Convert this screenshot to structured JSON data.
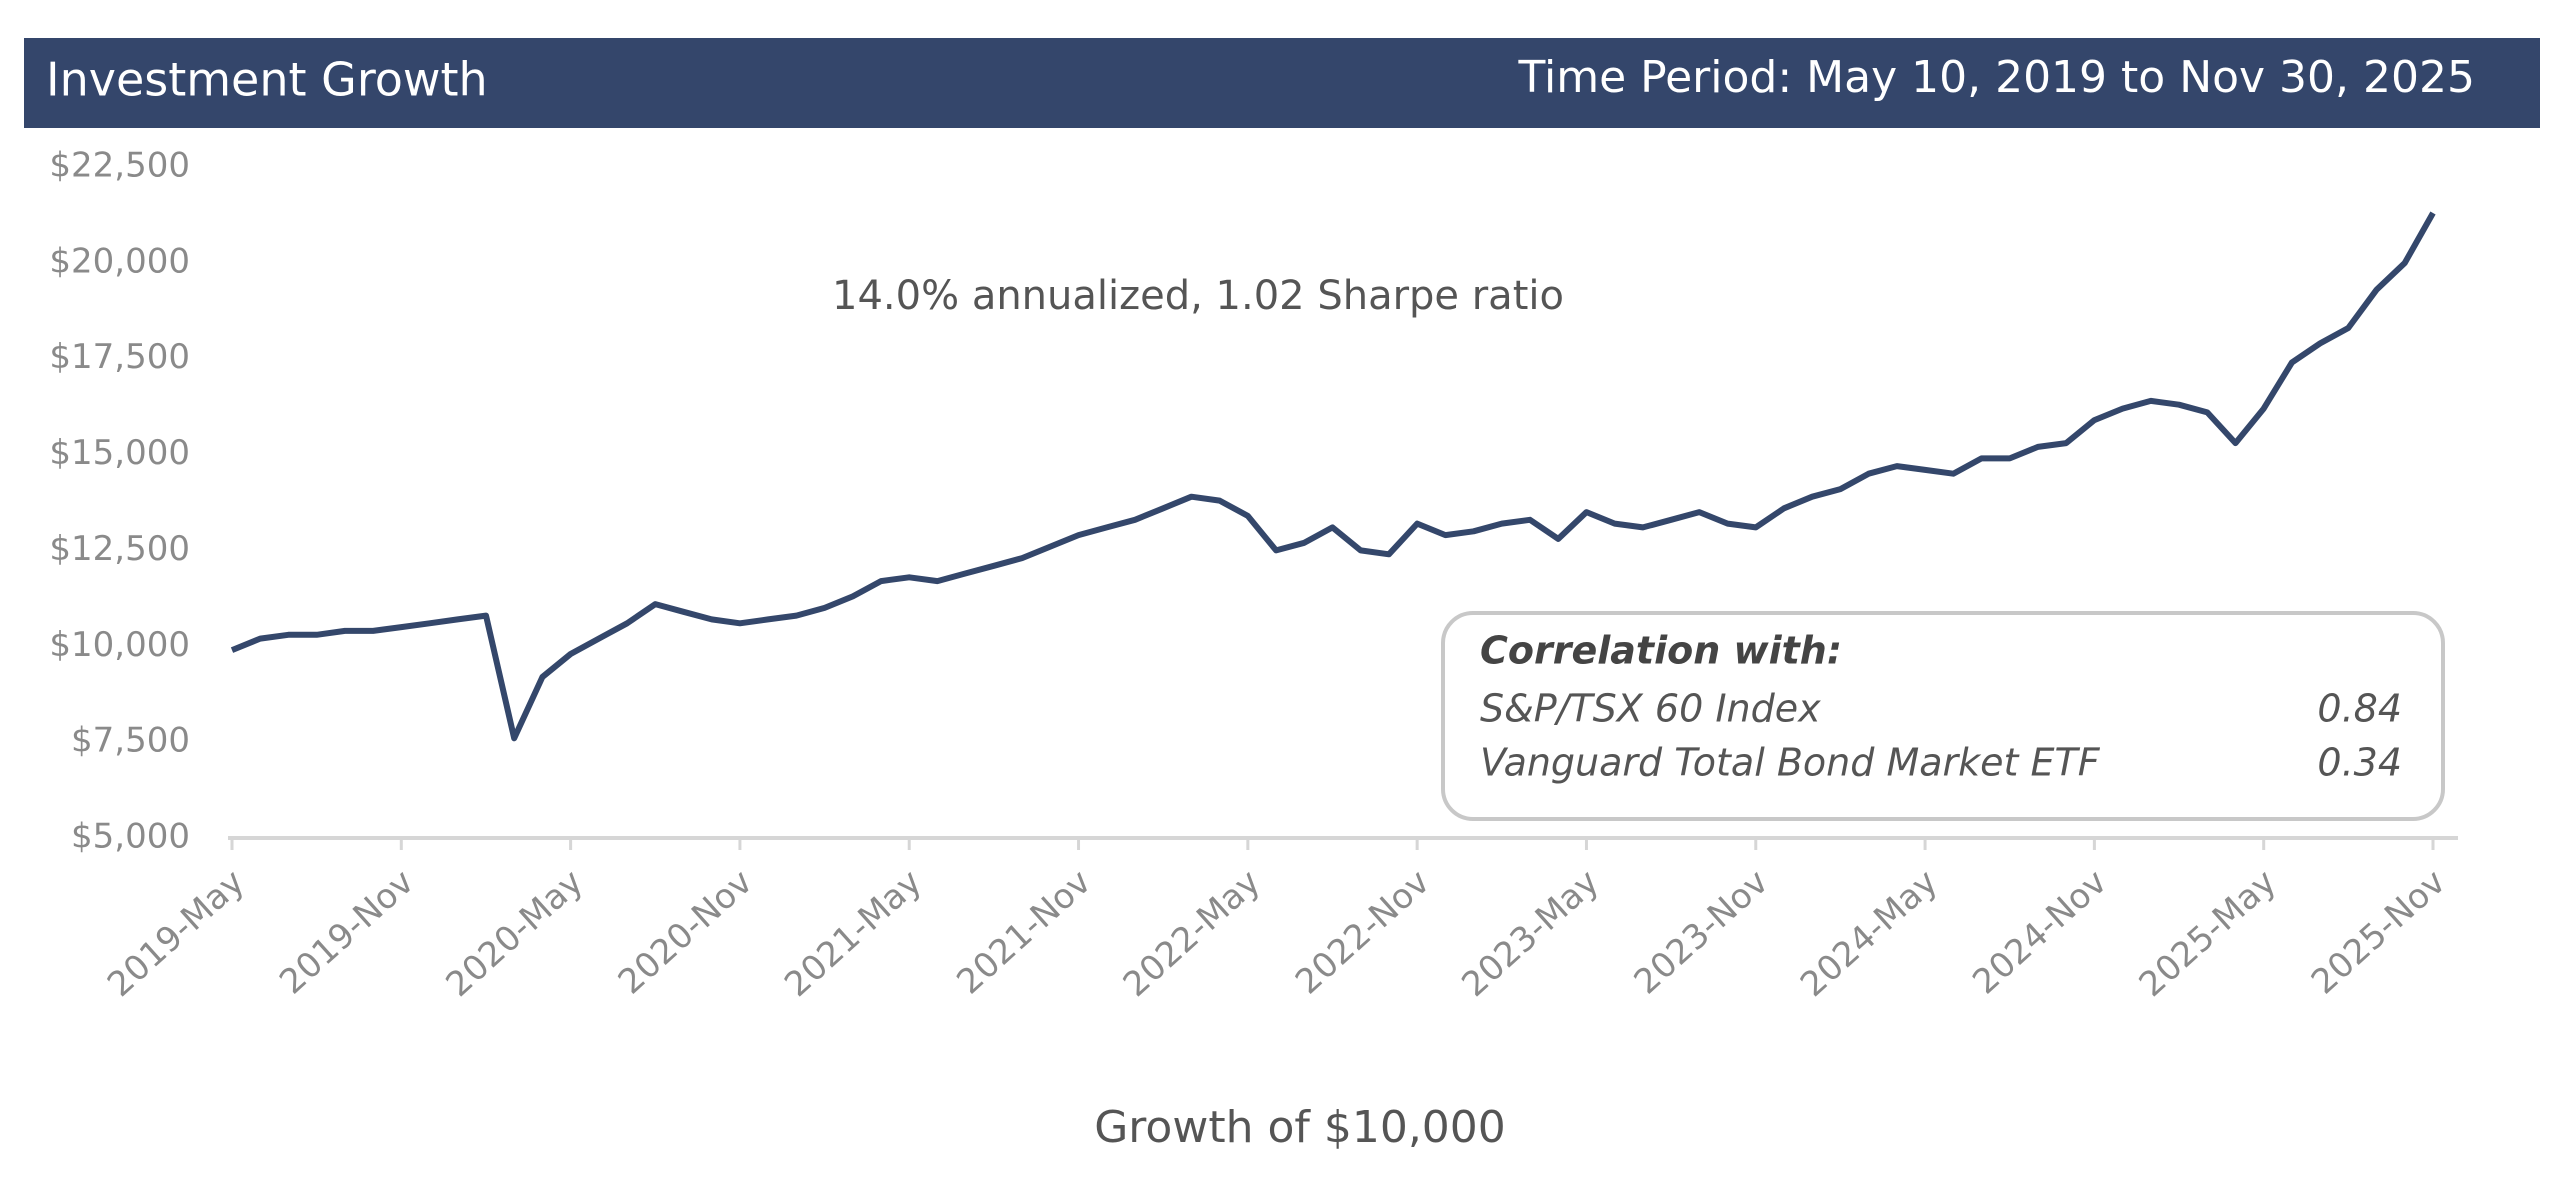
{
  "chart_data": {
    "type": "line",
    "title": "Investment Growth",
    "time_period": "Time Period: May 10, 2019 to Nov 30, 2025",
    "annotation": "14.0% annualized, 1.02 Sharpe ratio",
    "xlabel": "Growth of $10,000",
    "x": [
      "2019-05",
      "2019-06",
      "2019-07",
      "2019-08",
      "2019-09",
      "2019-10",
      "2019-11",
      "2019-12",
      "2020-01",
      "2020-02",
      "2020-03",
      "2020-04",
      "2020-05",
      "2020-06",
      "2020-07",
      "2020-08",
      "2020-09",
      "2020-10",
      "2020-11",
      "2020-12",
      "2021-01",
      "2021-02",
      "2021-03",
      "2021-04",
      "2021-05",
      "2021-06",
      "2021-07",
      "2021-08",
      "2021-09",
      "2021-10",
      "2021-11",
      "2021-12",
      "2022-01",
      "2022-02",
      "2022-03",
      "2022-04",
      "2022-05",
      "2022-06",
      "2022-07",
      "2022-08",
      "2022-09",
      "2022-10",
      "2022-11",
      "2022-12",
      "2023-01",
      "2023-02",
      "2023-03",
      "2023-04",
      "2023-05",
      "2023-06",
      "2023-07",
      "2023-08",
      "2023-09",
      "2023-10",
      "2023-11",
      "2023-12",
      "2024-01",
      "2024-02",
      "2024-03",
      "2024-04",
      "2024-05",
      "2024-06",
      "2024-07",
      "2024-08",
      "2024-09",
      "2024-10",
      "2024-11",
      "2024-12",
      "2025-01",
      "2025-02",
      "2025-03",
      "2025-04",
      "2025-05",
      "2025-06",
      "2025-07",
      "2025-08",
      "2025-09",
      "2025-10",
      "2025-11"
    ],
    "series": [
      {
        "name": "Growth of $10,000",
        "color": "#34476b",
        "values": [
          9900,
          10200,
          10300,
          10300,
          10400,
          10400,
          10500,
          10600,
          10700,
          10800,
          7600,
          9200,
          9800,
          10200,
          10600,
          11100,
          10900,
          10700,
          10600,
          10700,
          10800,
          11000,
          11300,
          11700,
          11800,
          11700,
          11900,
          12100,
          12300,
          12600,
          12900,
          13100,
          13300,
          13600,
          13900,
          13800,
          13400,
          12500,
          12700,
          13100,
          12500,
          12400,
          13200,
          12900,
          13000,
          13200,
          13300,
          12800,
          13500,
          13200,
          13100,
          13300,
          13500,
          13200,
          13100,
          13600,
          13900,
          14100,
          14500,
          14700,
          14600,
          14500,
          14900,
          14900,
          15200,
          15300,
          15900,
          16200,
          16400,
          16300,
          16100,
          15300,
          16200,
          17400,
          17900,
          18300,
          19300,
          20000,
          21300
        ]
      }
    ],
    "ylim": [
      5000,
      22500
    ],
    "yticks": [
      {
        "value": 5000,
        "label": "$5,000"
      },
      {
        "value": 7500,
        "label": "$7,500"
      },
      {
        "value": 10000,
        "label": "$10,000"
      },
      {
        "value": 12500,
        "label": "$12,500"
      },
      {
        "value": 15000,
        "label": "$15,000"
      },
      {
        "value": 17500,
        "label": "$17,500"
      },
      {
        "value": 20000,
        "label": "$20,000"
      },
      {
        "value": 22500,
        "label": "$22,500"
      }
    ],
    "xticks": [
      {
        "value": "2019-05",
        "label": "2019-May"
      },
      {
        "value": "2019-11",
        "label": "2019-Nov"
      },
      {
        "value": "2020-05",
        "label": "2020-May"
      },
      {
        "value": "2020-11",
        "label": "2020-Nov"
      },
      {
        "value": "2021-05",
        "label": "2021-May"
      },
      {
        "value": "2021-11",
        "label": "2021-Nov"
      },
      {
        "value": "2022-05",
        "label": "2022-May"
      },
      {
        "value": "2022-11",
        "label": "2022-Nov"
      },
      {
        "value": "2023-05",
        "label": "2023-May"
      },
      {
        "value": "2023-11",
        "label": "2023-Nov"
      },
      {
        "value": "2024-05",
        "label": "2024-May"
      },
      {
        "value": "2024-11",
        "label": "2024-Nov"
      },
      {
        "value": "2025-05",
        "label": "2025-May"
      },
      {
        "value": "2025-11",
        "label": "2025-Nov"
      }
    ],
    "correlation": {
      "title": "Correlation with:",
      "rows": [
        {
          "name": "S&P/TSX 60 Index",
          "value": 0.84
        },
        {
          "name": "Vanguard Total Bond Market ETF",
          "value": 0.34
        }
      ]
    }
  }
}
